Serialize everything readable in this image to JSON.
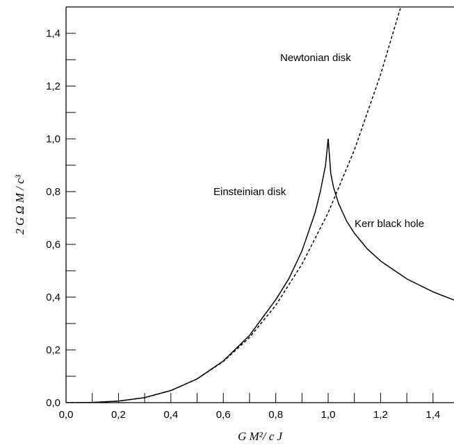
{
  "chart_data": {
    "type": "line",
    "xlabel": "G M²/ c J",
    "ylabel": "2 G Ω M / c³",
    "xlim": [
      0,
      1.48
    ],
    "ylim": [
      0,
      1.5
    ],
    "xticks": [
      {
        "value": 0,
        "label": "0,0"
      },
      {
        "value": 0.2,
        "label": "0,2"
      },
      {
        "value": 0.4,
        "label": "0,4"
      },
      {
        "value": 0.6,
        "label": "0,6"
      },
      {
        "value": 0.8,
        "label": "0,8"
      },
      {
        "value": 1.0,
        "label": "1,0"
      },
      {
        "value": 1.2,
        "label": "1,2"
      },
      {
        "value": 1.4,
        "label": "1,4"
      }
    ],
    "yticks": [
      {
        "value": 0,
        "label": "0,0"
      },
      {
        "value": 0.2,
        "label": "0,2"
      },
      {
        "value": 0.4,
        "label": "0,4"
      },
      {
        "value": 0.6,
        "label": "0,6"
      },
      {
        "value": 0.8,
        "label": "0,8"
      },
      {
        "value": 1.0,
        "label": "1,0"
      },
      {
        "value": 1.2,
        "label": "1,2"
      },
      {
        "value": 1.4,
        "label": "1,4"
      }
    ],
    "series": [
      {
        "name": "Newtonian disk",
        "color": "#000000",
        "dash": true,
        "x": [
          0,
          0.1,
          0.2,
          0.3,
          0.4,
          0.5,
          0.6,
          0.7,
          0.8,
          0.9,
          1.0,
          1.1,
          1.2,
          1.28
        ],
        "values": [
          0,
          0.0007,
          0.006,
          0.019,
          0.046,
          0.09,
          0.156,
          0.247,
          0.369,
          0.525,
          0.72,
          0.958,
          1.244,
          1.51
        ]
      },
      {
        "name": "Einsteinian disk",
        "color": "#000000",
        "dash": false,
        "x": [
          0,
          0.1,
          0.2,
          0.3,
          0.4,
          0.5,
          0.6,
          0.7,
          0.8,
          0.85,
          0.9,
          0.95,
          0.97,
          0.99,
          1.0
        ],
        "values": [
          0,
          0.0007,
          0.006,
          0.019,
          0.046,
          0.09,
          0.158,
          0.255,
          0.39,
          0.47,
          0.575,
          0.72,
          0.8,
          0.9,
          1.0
        ]
      },
      {
        "name": "Kerr black hole",
        "color": "#000000",
        "dash": false,
        "x": [
          1.0,
          1.01,
          1.02,
          1.04,
          1.07,
          1.1,
          1.15,
          1.2,
          1.3,
          1.4,
          1.48
        ],
        "values": [
          1.0,
          0.868,
          0.818,
          0.754,
          0.689,
          0.642,
          0.582,
          0.537,
          0.469,
          0.42,
          0.389
        ]
      }
    ]
  }
}
